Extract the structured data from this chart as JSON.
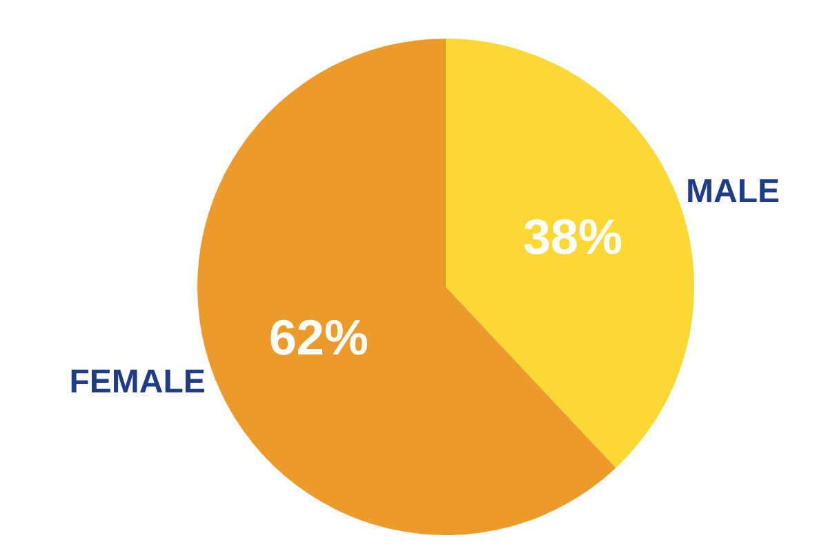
{
  "chart_data": {
    "type": "pie",
    "categories": [
      "MALE",
      "FEMALE"
    ],
    "values": [
      38,
      62
    ],
    "colors": [
      "#fdd835",
      "#ec9a29"
    ],
    "value_labels": [
      "38%",
      "62%"
    ]
  }
}
